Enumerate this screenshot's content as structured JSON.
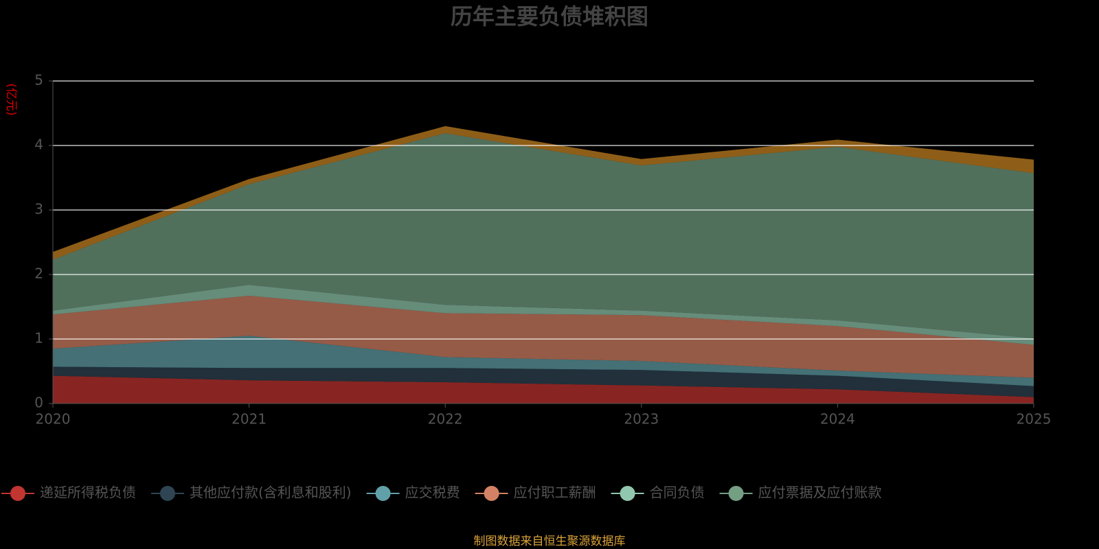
{
  "chart_data": {
    "type": "stacked_area",
    "title": "历年主要负债堆积图",
    "y_label": "(亿元)",
    "source": "制图数据来自恒生聚源数据库",
    "categories": [
      "2020",
      "2021",
      "2022",
      "2023",
      "2024",
      "2025"
    ],
    "ylim": [
      0,
      5
    ],
    "yticks": [
      0,
      1,
      2,
      3,
      4,
      5
    ],
    "grid": true,
    "series": [
      {
        "name": "递延所得税负债",
        "color": "#c23531",
        "values": [
          0.43,
          0.36,
          0.33,
          0.28,
          0.22,
          0.1
        ]
      },
      {
        "name": "其他应付款(含利息和股利)",
        "color": "#2f4554",
        "values": [
          0.14,
          0.19,
          0.22,
          0.24,
          0.21,
          0.17
        ]
      },
      {
        "name": "应交税费",
        "color": "#61a0a8",
        "values": [
          0.28,
          0.5,
          0.17,
          0.14,
          0.08,
          0.13
        ]
      },
      {
        "name": "应付职工薪酬",
        "color": "#d48265",
        "values": [
          0.53,
          0.62,
          0.68,
          0.71,
          0.69,
          0.51
        ]
      },
      {
        "name": "合同负债",
        "color": "#91c7ae",
        "values": [
          0.06,
          0.17,
          0.13,
          0.07,
          0.09,
          0.1
        ]
      },
      {
        "name": "应付票据及应付账款",
        "color": "#749f83",
        "values": [
          0.79,
          1.56,
          2.66,
          2.25,
          2.69,
          2.56
        ]
      },
      {
        "color": "#ca8622",
        "values": [
          0.12,
          0.08,
          0.11,
          0.1,
          0.11,
          0.21
        ]
      }
    ]
  }
}
